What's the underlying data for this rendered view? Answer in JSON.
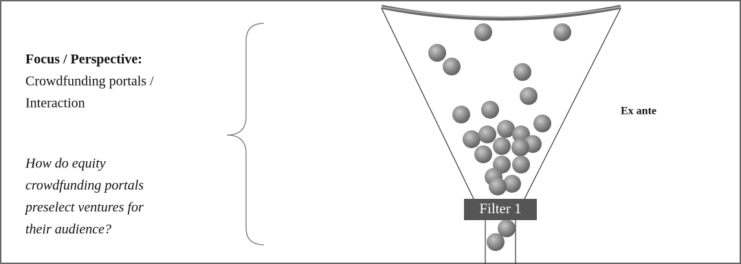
{
  "focus": {
    "heading": "Focus / Perspective:",
    "lines": [
      "Crowdfunding portals /",
      "Interaction"
    ]
  },
  "question": {
    "lines": [
      "How do equity",
      "crowdfunding portals",
      "preselect ventures for",
      "their audience?"
    ]
  },
  "funnel": {
    "filter_label": "Filter 1"
  },
  "stage_label": "Ex ante"
}
